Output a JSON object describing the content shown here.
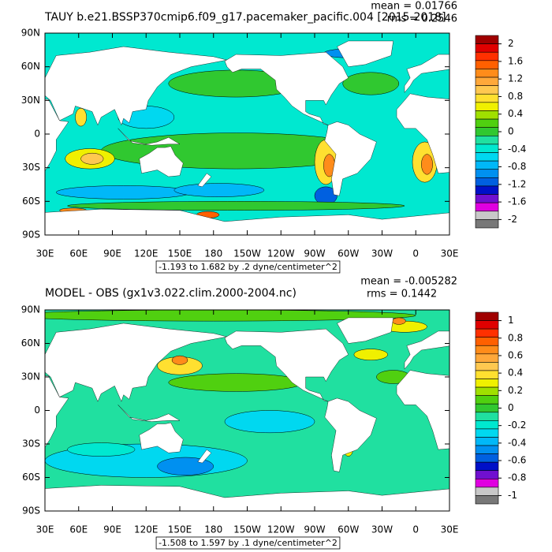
{
  "chart_data": [
    {
      "type": "contour-map",
      "title": "TAUY b.e21.BSSP370cmip6.f09_g17.pacemaker_pacific.004 [2015-2018]",
      "mean": "mean = 0.01766",
      "rms": "rms = 0.2546",
      "info_label": "-1.193 to 1.682 by .2 dyne/centimeter^2",
      "xlim": [
        30,
        390
      ],
      "ylim": [
        -90,
        90
      ],
      "xticks": [
        {
          "value": 30,
          "label": "30E"
        },
        {
          "value": 60,
          "label": "60E"
        },
        {
          "value": 90,
          "label": "90E"
        },
        {
          "value": 120,
          "label": "120E"
        },
        {
          "value": 150,
          "label": "150E"
        },
        {
          "value": 180,
          "label": "180"
        },
        {
          "value": 210,
          "label": "150W"
        },
        {
          "value": 240,
          "label": "120W"
        },
        {
          "value": 270,
          "label": "90W"
        },
        {
          "value": 300,
          "label": "60W"
        },
        {
          "value": 330,
          "label": "30W"
        },
        {
          "value": 360,
          "label": "0"
        },
        {
          "value": 390,
          "label": "30E"
        }
      ],
      "yticks": [
        {
          "value": 90,
          "label": "90N"
        },
        {
          "value": 60,
          "label": "60N"
        },
        {
          "value": 30,
          "label": "30N"
        },
        0,
        {
          "value": -30,
          "label": "30S"
        },
        {
          "value": -60,
          "label": "60S"
        },
        {
          "value": -90,
          "label": "90S"
        }
      ],
      "colorbar": {
        "ticks": [
          2,
          1.6,
          1.2,
          0.8,
          0.4,
          0,
          -0.4,
          -0.8,
          -1.2,
          -1.6,
          -2
        ],
        "colors": [
          "#a00000",
          "#e00000",
          "#ff3000",
          "#ff6000",
          "#ff8c1a",
          "#ffa83a",
          "#ffc850",
          "#ffe030",
          "#f0f000",
          "#a0e000",
          "#50d010",
          "#30c830",
          "#20e0a0",
          "#00e8d0",
          "#00d8f0",
          "#00b8f8",
          "#0090f0",
          "#0060e0",
          "#0010c8",
          "#7010d0",
          "#e000e0",
          "#c8c8c8",
          "#787878"
        ]
      }
    },
    {
      "type": "contour-map",
      "title": "MODEL - OBS (gx1v3.022.clim.2000-2004.nc)",
      "mean": "mean = -0.005282",
      "rms": "rms = 0.1442",
      "info_label": "-1.508 to 1.597 by .1 dyne/centimeter^2",
      "xlim": [
        30,
        390
      ],
      "ylim": [
        -90,
        90
      ],
      "xticks": [
        {
          "value": 30,
          "label": "30E"
        },
        {
          "value": 60,
          "label": "60E"
        },
        {
          "value": 90,
          "label": "90E"
        },
        {
          "value": 120,
          "label": "120E"
        },
        {
          "value": 150,
          "label": "150E"
        },
        {
          "value": 180,
          "label": "180"
        },
        {
          "value": 210,
          "label": "150W"
        },
        {
          "value": 240,
          "label": "120W"
        },
        {
          "value": 270,
          "label": "90W"
        },
        {
          "value": 300,
          "label": "60W"
        },
        {
          "value": 330,
          "label": "30W"
        },
        {
          "value": 360,
          "label": "0"
        },
        {
          "value": 390,
          "label": "30E"
        }
      ],
      "yticks": [
        {
          "value": 90,
          "label": "90N"
        },
        {
          "value": 60,
          "label": "60N"
        },
        {
          "value": 30,
          "label": "30N"
        },
        0,
        {
          "value": -30,
          "label": "30S"
        },
        {
          "value": -60,
          "label": "60S"
        },
        {
          "value": -90,
          "label": "90S"
        }
      ],
      "colorbar": {
        "ticks": [
          1,
          0.8,
          0.6,
          0.4,
          0.2,
          0,
          -0.2,
          -0.4,
          -0.6,
          -0.8,
          -1
        ],
        "colors": [
          "#a00000",
          "#e00000",
          "#ff3000",
          "#ff6000",
          "#ff8c1a",
          "#ffa83a",
          "#ffc850",
          "#ffe030",
          "#f0f000",
          "#a0e000",
          "#50d010",
          "#30c830",
          "#20e0a0",
          "#00e8d0",
          "#00d8f0",
          "#00b8f8",
          "#0090f0",
          "#0060e0",
          "#0010c8",
          "#7010d0",
          "#e000e0",
          "#c8c8c8",
          "#787878"
        ]
      }
    }
  ]
}
